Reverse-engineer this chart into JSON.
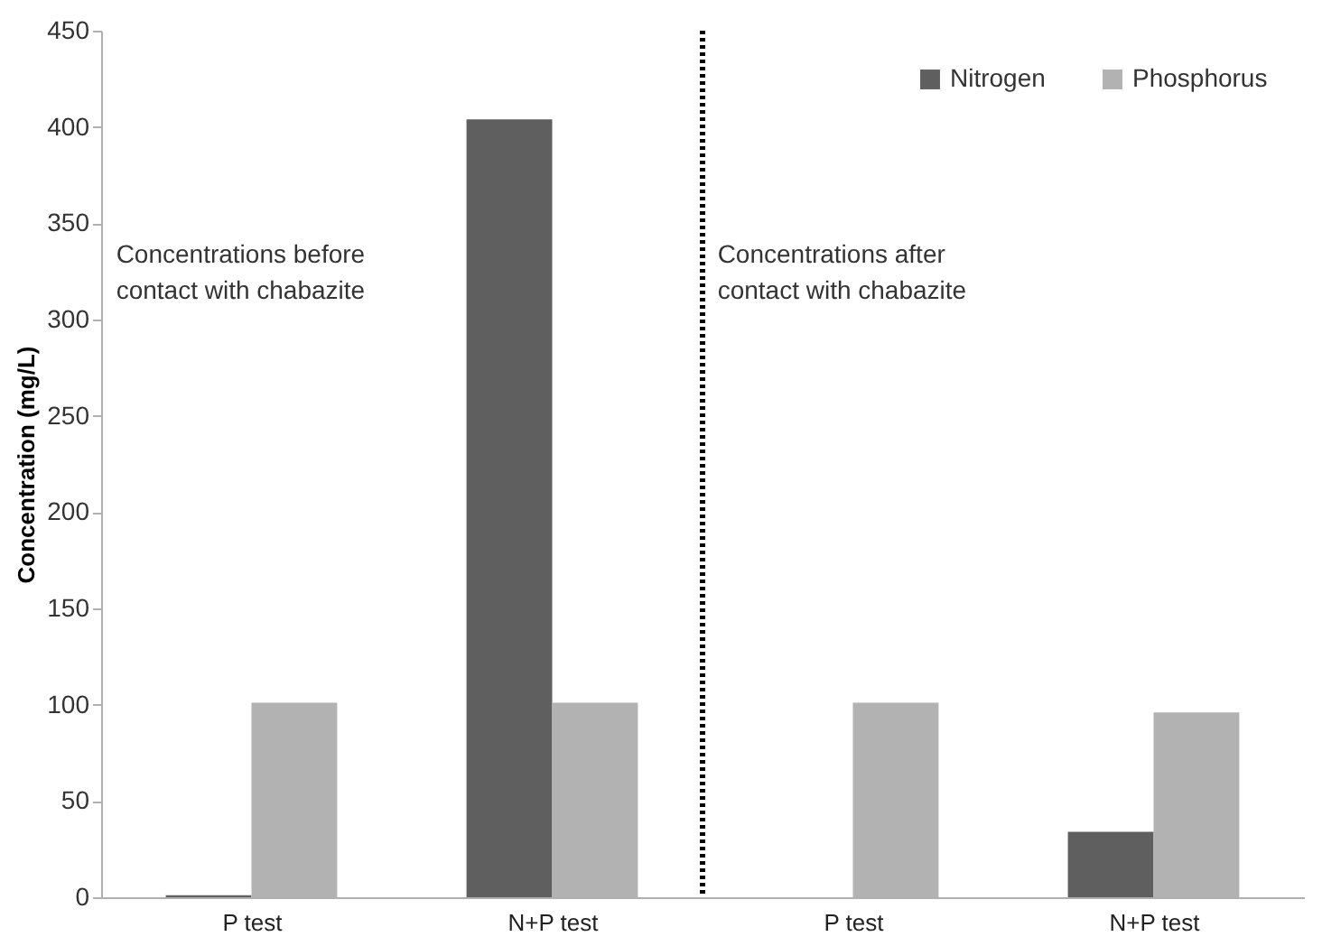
{
  "chart_data": {
    "type": "bar",
    "ylabel": "Concentration (mg/L)",
    "categories": [
      "P test",
      "N+P test",
      "P test",
      "N+P test"
    ],
    "series": [
      {
        "name": "Nitrogen",
        "color": "#5f5f5f",
        "values": [
          1,
          404,
          0,
          34
        ]
      },
      {
        "name": "Phosphorus",
        "color": "#b2b2b2",
        "values": [
          101,
          101,
          101,
          96
        ]
      }
    ],
    "ylim": [
      0,
      450
    ],
    "yticks": [
      0,
      50,
      100,
      150,
      200,
      250,
      300,
      350,
      400,
      450
    ],
    "annotations": [
      "Concentrations before\ncontact with chabazite",
      "Concentrations  after\ncontact with  chabazite"
    ],
    "legend": "top right",
    "grid": false
  }
}
